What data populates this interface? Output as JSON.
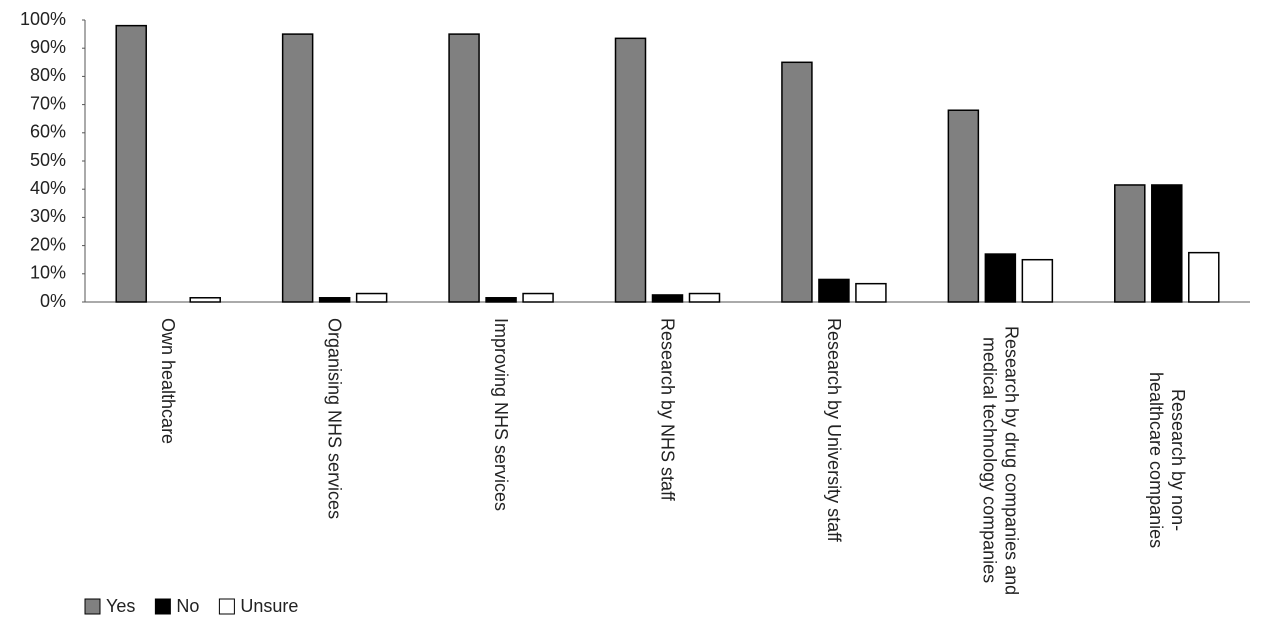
{
  "chart_data": {
    "type": "bar",
    "categories": [
      "Own healthcare",
      "Organising NHS services",
      "Improving NHS services",
      "Research by NHS staff",
      "Research by University staff",
      "Research by drug companies and medical technology companies",
      "Research by non-healthcare companies"
    ],
    "series": [
      {
        "name": "Yes",
        "color": "#808080",
        "values": [
          98,
          95,
          95,
          93.5,
          85,
          68,
          41.5
        ]
      },
      {
        "name": "No",
        "color": "#000000",
        "values": [
          0,
          1.5,
          1.5,
          2.5,
          8,
          17,
          41.5
        ]
      },
      {
        "name": "Unsure",
        "color": "#ffffff",
        "values": [
          1.5,
          3,
          3,
          3,
          6.5,
          15,
          17.5
        ]
      }
    ],
    "ylim": [
      0,
      100
    ],
    "yticks": [
      {
        "value": 0,
        "label": "0%"
      },
      {
        "value": 10,
        "label": "10%"
      },
      {
        "value": 20,
        "label": "20%"
      },
      {
        "value": 30,
        "label": "30%"
      },
      {
        "value": 40,
        "label": "40%"
      },
      {
        "value": 50,
        "label": "50%"
      },
      {
        "value": 60,
        "label": "60%"
      },
      {
        "value": 70,
        "label": "70%"
      },
      {
        "value": 80,
        "label": "80%"
      },
      {
        "value": 90,
        "label": "90%"
      },
      {
        "value": 100,
        "label": "100%"
      }
    ],
    "grid": false,
    "legend": "bottom-left"
  }
}
